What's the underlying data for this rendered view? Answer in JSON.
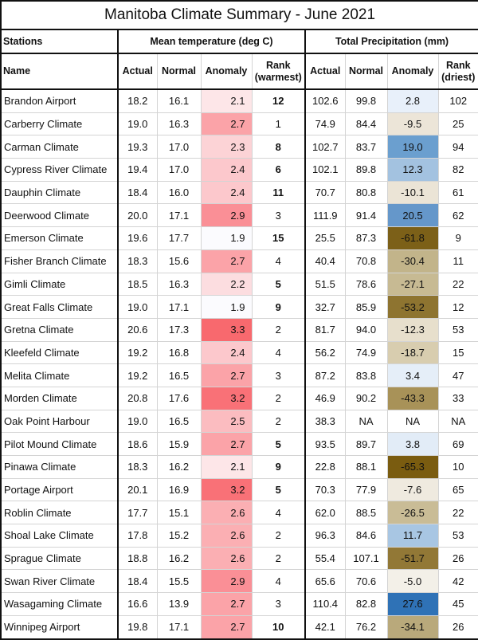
{
  "title": "Manitoba Climate Summary - June 2021",
  "group_headers": {
    "stations": "Stations",
    "temperature": "Mean temperature (deg C)",
    "precipitation": "Total Precipitation (mm)"
  },
  "column_headers": {
    "name": "Name",
    "t_actual": "Actual",
    "t_normal": "Normal",
    "t_anomaly": "Anomaly",
    "t_rank_line1": "Rank",
    "t_rank_line2": "(warmest)",
    "p_actual": "Actual",
    "p_normal": "Normal",
    "p_anomaly": "Anomaly",
    "p_rank_line1": "Rank",
    "p_rank_line2": "(driest)"
  },
  "rows": [
    {
      "name": "Brandon Airport",
      "t_actual": "18.2",
      "t_normal": "16.1",
      "t_anomaly": "2.1",
      "t_rank": "12",
      "t_rank_bold": true,
      "t_color": "#fde6e8",
      "p_actual": "102.6",
      "p_normal": "99.8",
      "p_anomaly": "2.8",
      "p_rank": "102",
      "p_color": "#e8f0fa"
    },
    {
      "name": "Carberry Climate",
      "t_actual": "19.0",
      "t_normal": "16.3",
      "t_anomaly": "2.7",
      "t_rank": "1",
      "t_rank_bold": false,
      "t_color": "#fba3a8",
      "p_actual": "74.9",
      "p_normal": "84.4",
      "p_anomaly": "-9.5",
      "p_rank": "25",
      "p_color": "#ece5d8"
    },
    {
      "name": "Carman Climate",
      "t_actual": "19.3",
      "t_normal": "17.0",
      "t_anomaly": "2.3",
      "t_rank": "8",
      "t_rank_bold": true,
      "t_color": "#fcd3d6",
      "p_actual": "102.7",
      "p_normal": "83.7",
      "p_anomaly": "19.0",
      "p_rank": "94",
      "p_color": "#6b9fcf"
    },
    {
      "name": "Cypress River Climate",
      "t_actual": "19.4",
      "t_normal": "17.0",
      "t_anomaly": "2.4",
      "t_rank": "6",
      "t_rank_bold": true,
      "t_color": "#fcc8cc",
      "p_actual": "102.1",
      "p_normal": "89.8",
      "p_anomaly": "12.3",
      "p_rank": "82",
      "p_color": "#a3c2e0"
    },
    {
      "name": "Dauphin Climate",
      "t_actual": "18.4",
      "t_normal": "16.0",
      "t_anomaly": "2.4",
      "t_rank": "11",
      "t_rank_bold": true,
      "t_color": "#fcc8cc",
      "p_actual": "70.7",
      "p_normal": "80.8",
      "p_anomaly": "-10.1",
      "p_rank": "61",
      "p_color": "#ebe4d6"
    },
    {
      "name": "Deerwood Climate",
      "t_actual": "20.0",
      "t_normal": "17.1",
      "t_anomaly": "2.9",
      "t_rank": "3",
      "t_rank_bold": false,
      "t_color": "#fa8f96",
      "p_actual": "111.9",
      "p_normal": "91.4",
      "p_anomaly": "20.5",
      "p_rank": "62",
      "p_color": "#6597ca"
    },
    {
      "name": "Emerson Climate",
      "t_actual": "19.6",
      "t_normal": "17.7",
      "t_anomaly": "1.9",
      "t_rank": "15",
      "t_rank_bold": true,
      "t_color": "#fbfbfe",
      "p_actual": "25.5",
      "p_normal": "87.3",
      "p_anomaly": "-61.8",
      "p_rank": "9",
      "p_color": "#7c6018"
    },
    {
      "name": "Fisher Branch Climate",
      "t_actual": "18.3",
      "t_normal": "15.6",
      "t_anomaly": "2.7",
      "t_rank": "4",
      "t_rank_bold": false,
      "t_color": "#fba3a8",
      "p_actual": "40.4",
      "p_normal": "70.8",
      "p_anomaly": "-30.4",
      "p_rank": "11",
      "p_color": "#c2b48a"
    },
    {
      "name": "Gimli Climate",
      "t_actual": "18.5",
      "t_normal": "16.3",
      "t_anomaly": "2.2",
      "t_rank": "5",
      "t_rank_bold": true,
      "t_color": "#fcdde0",
      "p_actual": "51.5",
      "p_normal": "78.6",
      "p_anomaly": "-27.1",
      "p_rank": "22",
      "p_color": "#c7ba93"
    },
    {
      "name": "Great Falls Climate",
      "t_actual": "19.0",
      "t_normal": "17.1",
      "t_anomaly": "1.9",
      "t_rank": "9",
      "t_rank_bold": true,
      "t_color": "#fbfbfe",
      "p_actual": "32.7",
      "p_normal": "85.9",
      "p_anomaly": "-53.2",
      "p_rank": "12",
      "p_color": "#8e7430"
    },
    {
      "name": "Gretna Climate",
      "t_actual": "20.6",
      "t_normal": "17.3",
      "t_anomaly": "3.3",
      "t_rank": "2",
      "t_rank_bold": false,
      "t_color": "#f8696e",
      "p_actual": "81.7",
      "p_normal": "94.0",
      "p_anomaly": "-12.3",
      "p_rank": "53",
      "p_color": "#e7dfcc"
    },
    {
      "name": "Kleefeld Climate",
      "t_actual": "19.2",
      "t_normal": "16.8",
      "t_anomaly": "2.4",
      "t_rank": "4",
      "t_rank_bold": false,
      "t_color": "#fcc8cc",
      "p_actual": "56.2",
      "p_normal": "74.9",
      "p_anomaly": "-18.7",
      "p_rank": "15",
      "p_color": "#d8cdaf"
    },
    {
      "name": "Melita Climate",
      "t_actual": "19.2",
      "t_normal": "16.5",
      "t_anomaly": "2.7",
      "t_rank": "3",
      "t_rank_bold": false,
      "t_color": "#fba3a8",
      "p_actual": "87.2",
      "p_normal": "83.8",
      "p_anomaly": "3.4",
      "p_rank": "47",
      "p_color": "#e5eef8"
    },
    {
      "name": "Morden Climate",
      "t_actual": "20.8",
      "t_normal": "17.6",
      "t_anomaly": "3.2",
      "t_rank": "2",
      "t_rank_bold": false,
      "t_color": "#f97177",
      "p_actual": "46.9",
      "p_normal": "90.2",
      "p_anomaly": "-43.3",
      "p_rank": "33",
      "p_color": "#a89258"
    },
    {
      "name": "Oak Point Harbour",
      "t_actual": "19.0",
      "t_normal": "16.5",
      "t_anomaly": "2.5",
      "t_rank": "2",
      "t_rank_bold": false,
      "t_color": "#fbbcc0",
      "p_actual": "38.3",
      "p_normal": "NA",
      "p_anomaly": "NA",
      "p_rank": "NA",
      "p_color": "#ffffff"
    },
    {
      "name": "Pilot Mound Climate",
      "t_actual": "18.6",
      "t_normal": "15.9",
      "t_anomaly": "2.7",
      "t_rank": "5",
      "t_rank_bold": true,
      "t_color": "#fba3a8",
      "p_actual": "93.5",
      "p_normal": "89.7",
      "p_anomaly": "3.8",
      "p_rank": "69",
      "p_color": "#e2ecf7"
    },
    {
      "name": "Pinawa Climate",
      "t_actual": "18.3",
      "t_normal": "16.2",
      "t_anomaly": "2.1",
      "t_rank": "9",
      "t_rank_bold": true,
      "t_color": "#fde6e8",
      "p_actual": "22.8",
      "p_normal": "88.1",
      "p_anomaly": "-65.3",
      "p_rank": "10",
      "p_color": "#7a5c10"
    },
    {
      "name": "Portage Airport",
      "t_actual": "20.1",
      "t_normal": "16.9",
      "t_anomaly": "3.2",
      "t_rank": "5",
      "t_rank_bold": true,
      "t_color": "#f97177",
      "p_actual": "70.3",
      "p_normal": "77.9",
      "p_anomaly": "-7.6",
      "p_rank": "65",
      "p_color": "#efeadf"
    },
    {
      "name": "Roblin Climate",
      "t_actual": "17.7",
      "t_normal": "15.1",
      "t_anomaly": "2.6",
      "t_rank": "4",
      "t_rank_bold": false,
      "t_color": "#fbafb3",
      "p_actual": "62.0",
      "p_normal": "88.5",
      "p_anomaly": "-26.5",
      "p_rank": "22",
      "p_color": "#c9bc96"
    },
    {
      "name": "Shoal Lake Climate",
      "t_actual": "17.8",
      "t_normal": "15.2",
      "t_anomaly": "2.6",
      "t_rank": "2",
      "t_rank_bold": false,
      "t_color": "#fbafb3",
      "p_actual": "96.3",
      "p_normal": "84.6",
      "p_anomaly": "11.7",
      "p_rank": "53",
      "p_color": "#a8c6e3"
    },
    {
      "name": "Sprague Climate",
      "t_actual": "18.8",
      "t_normal": "16.2",
      "t_anomaly": "2.6",
      "t_rank": "2",
      "t_rank_bold": false,
      "t_color": "#fbafb3",
      "p_actual": "55.4",
      "p_normal": "107.1",
      "p_anomaly": "-51.7",
      "p_rank": "26",
      "p_color": "#927836"
    },
    {
      "name": "Swan River Climate",
      "t_actual": "18.4",
      "t_normal": "15.5",
      "t_anomaly": "2.9",
      "t_rank": "4",
      "t_rank_bold": false,
      "t_color": "#fa8f96",
      "p_actual": "65.6",
      "p_normal": "70.6",
      "p_anomaly": "-5.0",
      "p_rank": "42",
      "p_color": "#f3f0e8"
    },
    {
      "name": "Wasagaming Climate",
      "t_actual": "16.6",
      "t_normal": "13.9",
      "t_anomaly": "2.7",
      "t_rank": "3",
      "t_rank_bold": false,
      "t_color": "#fba3a8",
      "p_actual": "110.4",
      "p_normal": "82.8",
      "p_anomaly": "27.6",
      "p_rank": "45",
      "p_color": "#2f72b6"
    },
    {
      "name": "Winnipeg Airport",
      "t_actual": "19.8",
      "t_normal": "17.1",
      "t_anomaly": "2.7",
      "t_rank": "10",
      "t_rank_bold": true,
      "t_color": "#fba3a8",
      "p_actual": "42.1",
      "p_normal": "76.2",
      "p_anomaly": "-34.1",
      "p_rank": "26",
      "p_color": "#b9a97b"
    }
  ]
}
